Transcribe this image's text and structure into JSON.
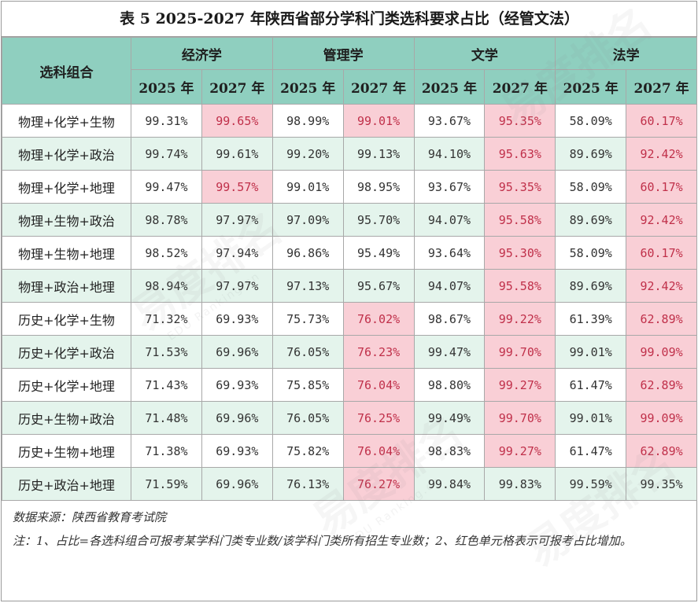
{
  "title": "表 5  2025-2027 年陕西省部分学科门类选科要求占比（经管文法）",
  "header": {
    "combo_label": "选科组合",
    "groups": [
      "经济学",
      "管理学",
      "文学",
      "法学"
    ],
    "years": [
      "2025 年",
      "2027 年"
    ]
  },
  "rows": [
    {
      "combo": "物理+化学+生物",
      "values": [
        "99.31%",
        "99.65%",
        "98.99%",
        "99.01%",
        "93.67%",
        "95.35%",
        "58.09%",
        "60.17%"
      ],
      "highlight": [
        1,
        3,
        5,
        7
      ]
    },
    {
      "combo": "物理+化学+政治",
      "values": [
        "99.74%",
        "99.61%",
        "99.20%",
        "99.13%",
        "94.10%",
        "95.63%",
        "89.69%",
        "92.42%"
      ],
      "highlight": [
        5,
        7
      ]
    },
    {
      "combo": "物理+化学+地理",
      "values": [
        "99.47%",
        "99.57%",
        "99.01%",
        "98.95%",
        "93.67%",
        "95.35%",
        "58.09%",
        "60.17%"
      ],
      "highlight": [
        1,
        5,
        7
      ]
    },
    {
      "combo": "物理+生物+政治",
      "values": [
        "98.78%",
        "97.97%",
        "97.09%",
        "95.70%",
        "94.07%",
        "95.58%",
        "89.69%",
        "92.42%"
      ],
      "highlight": [
        5,
        7
      ]
    },
    {
      "combo": "物理+生物+地理",
      "values": [
        "98.52%",
        "97.94%",
        "96.86%",
        "95.49%",
        "93.64%",
        "95.30%",
        "58.09%",
        "60.17%"
      ],
      "highlight": [
        5,
        7
      ]
    },
    {
      "combo": "物理+政治+地理",
      "values": [
        "98.94%",
        "97.97%",
        "97.13%",
        "95.67%",
        "94.07%",
        "95.58%",
        "89.69%",
        "92.42%"
      ],
      "highlight": [
        5,
        7
      ]
    },
    {
      "combo": "历史+化学+生物",
      "values": [
        "71.32%",
        "69.93%",
        "75.73%",
        "76.02%",
        "98.67%",
        "99.22%",
        "61.39%",
        "62.89%"
      ],
      "highlight": [
        3,
        5,
        7
      ]
    },
    {
      "combo": "历史+化学+政治",
      "values": [
        "71.53%",
        "69.96%",
        "76.05%",
        "76.23%",
        "99.47%",
        "99.70%",
        "99.01%",
        "99.09%"
      ],
      "highlight": [
        3,
        5,
        7
      ]
    },
    {
      "combo": "历史+化学+地理",
      "values": [
        "71.43%",
        "69.93%",
        "75.85%",
        "76.04%",
        "98.80%",
        "99.27%",
        "61.47%",
        "62.89%"
      ],
      "highlight": [
        3,
        5,
        7
      ]
    },
    {
      "combo": "历史+生物+政治",
      "values": [
        "71.48%",
        "69.96%",
        "76.05%",
        "76.25%",
        "99.49%",
        "99.70%",
        "99.01%",
        "99.09%"
      ],
      "highlight": [
        3,
        5,
        7
      ]
    },
    {
      "combo": "历史+生物+地理",
      "values": [
        "71.38%",
        "69.93%",
        "75.82%",
        "76.04%",
        "98.83%",
        "99.27%",
        "61.47%",
        "62.89%"
      ],
      "highlight": [
        3,
        5,
        7
      ]
    },
    {
      "combo": "历史+政治+地理",
      "values": [
        "71.59%",
        "69.96%",
        "76.13%",
        "76.27%",
        "99.84%",
        "99.83%",
        "99.59%",
        "99.35%"
      ],
      "highlight": [
        3
      ]
    }
  ],
  "notes": {
    "source": "数据来源：陕西省教育考试院",
    "note": "注：1、占比=各选科组合可报考某学科门类专业数/该学科门类所有招生专业数；2、红色单元格表示可报考占比增加。"
  },
  "watermark": {
    "text": "易度排名",
    "sub": "EDU Ranking.cn"
  },
  "colors": {
    "header_bg": "#8fcfbf",
    "row_alt": "#e4f4ec",
    "highlight_bg": "#f9cfd6",
    "highlight_text": "#c0304a"
  }
}
